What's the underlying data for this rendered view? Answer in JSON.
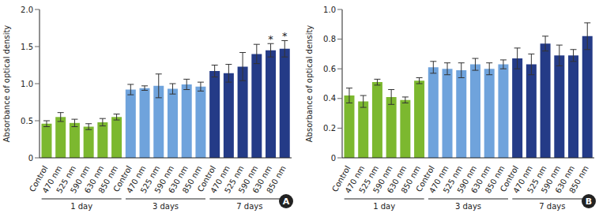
{
  "chart_data": [
    {
      "type": "bar",
      "panel": "A",
      "y_label": "Absorbance of optical density",
      "categories": [
        "Control",
        "470 nm",
        "525 nm",
        "590 nm",
        "630 nm",
        "850 nm",
        "Control",
        "470 nm",
        "525 nm",
        "590 nm",
        "630 nm",
        "850 nm",
        "Control",
        "470 nm",
        "525 nm",
        "590 nm",
        "630 nm",
        "850 nm"
      ],
      "groups": [
        "1 day",
        "3 days",
        "7 days"
      ],
      "values": [
        0.46,
        0.55,
        0.47,
        0.42,
        0.48,
        0.55,
        0.92,
        0.94,
        0.97,
        0.93,
        0.99,
        0.96,
        1.17,
        1.14,
        1.23,
        1.4,
        1.45,
        1.47
      ],
      "errors": [
        0.04,
        0.06,
        0.05,
        0.04,
        0.05,
        0.04,
        0.07,
        0.03,
        0.16,
        0.07,
        0.07,
        0.06,
        0.08,
        0.12,
        0.19,
        0.13,
        0.09,
        0.11
      ],
      "annotations": [
        null,
        null,
        null,
        null,
        null,
        null,
        null,
        null,
        null,
        null,
        null,
        null,
        null,
        null,
        null,
        null,
        "*",
        "*"
      ],
      "colors": [
        "#7cb82f",
        "#7cb82f",
        "#7cb82f",
        "#7cb82f",
        "#7cb82f",
        "#7cb82f",
        "#6fa3dc",
        "#6fa3dc",
        "#6fa3dc",
        "#6fa3dc",
        "#6fa3dc",
        "#6fa3dc",
        "#243b87",
        "#243b87",
        "#243b87",
        "#243b87",
        "#243b87",
        "#243b87"
      ],
      "ylim": [
        0,
        2
      ],
      "yticks": [
        0,
        0.5,
        {
          "value": 1,
          "label": "1.0"
        },
        1.5,
        {
          "value": 2,
          "label": "2.0"
        }
      ]
    },
    {
      "type": "bar",
      "panel": "B",
      "y_label": "Absorbance of optical density",
      "categories": [
        "Control",
        "470 nm",
        "525 nm",
        "590 nm",
        "630 nm",
        "850 nm",
        "Control",
        "470 nm",
        "525 nm",
        "590 nm",
        "630 nm",
        "850 nm",
        "Control",
        "470 nm",
        "525 nm",
        "590 nm",
        "630 nm",
        "850 nm"
      ],
      "groups": [
        "1 day",
        "3 days",
        "7 days"
      ],
      "values": [
        0.42,
        0.38,
        0.51,
        0.41,
        0.39,
        0.52,
        0.61,
        0.6,
        0.59,
        0.63,
        0.6,
        0.63,
        0.67,
        0.63,
        0.77,
        0.69,
        0.69,
        0.82
      ],
      "errors": [
        0.05,
        0.04,
        0.02,
        0.05,
        0.02,
        0.02,
        0.04,
        0.04,
        0.05,
        0.04,
        0.04,
        0.03,
        0.07,
        0.07,
        0.05,
        0.07,
        0.04,
        0.09
      ],
      "annotations": [
        null,
        null,
        null,
        null,
        null,
        null,
        null,
        null,
        null,
        null,
        null,
        null,
        null,
        null,
        null,
        null,
        null,
        null
      ],
      "colors": [
        "#7cb82f",
        "#7cb82f",
        "#7cb82f",
        "#7cb82f",
        "#7cb82f",
        "#7cb82f",
        "#6fa3dc",
        "#6fa3dc",
        "#6fa3dc",
        "#6fa3dc",
        "#6fa3dc",
        "#6fa3dc",
        "#243b87",
        "#243b87",
        "#243b87",
        "#243b87",
        "#243b87",
        "#243b87"
      ],
      "ylim": [
        0,
        1
      ],
      "yticks": [
        0,
        0.2,
        0.4,
        0.6,
        0.8,
        {
          "value": 1,
          "label": "1.0"
        }
      ]
    }
  ]
}
